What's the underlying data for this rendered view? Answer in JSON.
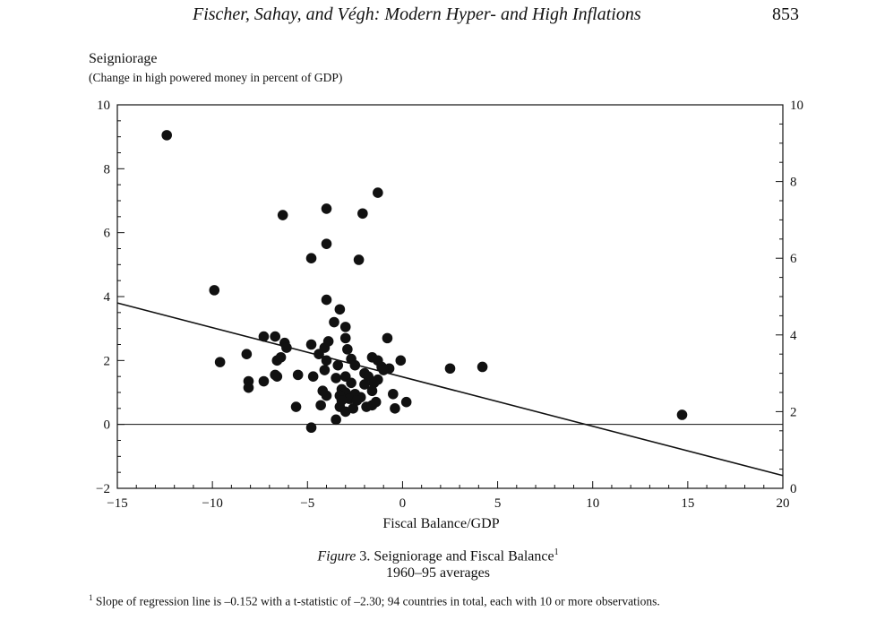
{
  "header": {
    "running_title": "Fischer, Sahay, and Végh: Modern Hyper- and High Inflations",
    "page_number": "853"
  },
  "chart_data": {
    "type": "scatter",
    "ylabel": "Seigniorage",
    "ylabel_sub": "(Change in high powered money in percent of GDP)",
    "xlabel": "Fiscal Balance/GDP",
    "xlim": [
      -15,
      20
    ],
    "ylim": [
      -2,
      10
    ],
    "x_ticks": [
      "−15",
      "−10",
      "−5",
      "0",
      "5",
      "10",
      "15",
      "20"
    ],
    "x_tick_values": [
      -15,
      -10,
      -5,
      0,
      5,
      10,
      15,
      20
    ],
    "y_ticks_left": [
      "−2",
      "0",
      "2",
      "4",
      "6",
      "8",
      "10"
    ],
    "y_tick_values_left": [
      -2,
      0,
      2,
      4,
      6,
      8,
      10
    ],
    "y_ticks_right": [
      "0",
      "2",
      "4",
      "6",
      "8",
      "10"
    ],
    "y_tick_values_right": [
      0,
      2,
      4,
      6,
      8,
      10
    ],
    "grid": false,
    "regression_line": {
      "x": [
        -15,
        20
      ],
      "y": [
        3.8,
        -1.6
      ]
    },
    "zero_line": true,
    "points": [
      [
        -12.4,
        9.05
      ],
      [
        -1.3,
        7.25
      ],
      [
        -6.3,
        6.55
      ],
      [
        -4.0,
        6.75
      ],
      [
        -2.1,
        6.6
      ],
      [
        -4.0,
        5.65
      ],
      [
        -4.8,
        5.2
      ],
      [
        -2.3,
        5.15
      ],
      [
        -9.9,
        4.2
      ],
      [
        -4.0,
        3.9
      ],
      [
        -3.3,
        3.6
      ],
      [
        -3.6,
        3.2
      ],
      [
        -3.0,
        3.05
      ],
      [
        -3.0,
        2.7
      ],
      [
        -0.8,
        2.7
      ],
      [
        -7.3,
        2.75
      ],
      [
        -6.7,
        2.75
      ],
      [
        -6.2,
        2.55
      ],
      [
        -6.1,
        2.4
      ],
      [
        -4.8,
        2.5
      ],
      [
        -4.1,
        2.4
      ],
      [
        -3.9,
        2.6
      ],
      [
        -4.4,
        2.2
      ],
      [
        -2.9,
        2.35
      ],
      [
        -8.2,
        2.2
      ],
      [
        -9.6,
        1.95
      ],
      [
        -6.6,
        2.0
      ],
      [
        -6.4,
        2.1
      ],
      [
        -4.0,
        2.0
      ],
      [
        -3.4,
        1.85
      ],
      [
        -2.7,
        2.05
      ],
      [
        -2.5,
        1.85
      ],
      [
        -1.6,
        2.1
      ],
      [
        -1.3,
        2.0
      ],
      [
        -0.1,
        2.0
      ],
      [
        -0.7,
        1.75
      ],
      [
        -1.1,
        1.8
      ],
      [
        -2.0,
        1.6
      ],
      [
        -4.1,
        1.7
      ],
      [
        -4.7,
        1.5
      ],
      [
        -5.5,
        1.55
      ],
      [
        -6.6,
        1.5
      ],
      [
        -6.7,
        1.55
      ],
      [
        -7.3,
        1.35
      ],
      [
        -8.1,
        1.35
      ],
      [
        -8.1,
        1.15
      ],
      [
        -3.0,
        1.5
      ],
      [
        -3.5,
        1.45
      ],
      [
        -1.8,
        1.5
      ],
      [
        -1.3,
        1.4
      ],
      [
        -1.5,
        1.3
      ],
      [
        -2.0,
        1.25
      ],
      [
        -2.7,
        1.3
      ],
      [
        -3.2,
        1.1
      ],
      [
        -3.0,
        1.0
      ],
      [
        -2.5,
        0.95
      ],
      [
        -3.3,
        0.9
      ],
      [
        -2.8,
        0.8
      ],
      [
        -2.2,
        0.85
      ],
      [
        -1.6,
        1.05
      ],
      [
        -0.5,
        0.95
      ],
      [
        -4.0,
        0.9
      ],
      [
        -4.2,
        1.05
      ],
      [
        -4.3,
        0.6
      ],
      [
        -5.6,
        0.55
      ],
      [
        -3.3,
        0.55
      ],
      [
        -3.0,
        0.4
      ],
      [
        -2.6,
        0.5
      ],
      [
        -1.9,
        0.55
      ],
      [
        -1.6,
        0.6
      ],
      [
        -1.4,
        0.7
      ],
      [
        -0.4,
        0.5
      ],
      [
        0.2,
        0.7
      ],
      [
        -3.5,
        0.15
      ],
      [
        -4.8,
        -0.1
      ],
      [
        -3.2,
        0.75
      ],
      [
        -2.4,
        0.75
      ],
      [
        -1.0,
        1.7
      ],
      [
        2.5,
        1.75
      ],
      [
        4.2,
        1.8
      ],
      [
        14.7,
        0.3
      ]
    ]
  },
  "caption": {
    "figure_label": "Figure",
    "figure_rest": " 3. Seigniorage and Fiscal Balance",
    "figure_sup": "1",
    "line2": "1960–95 averages"
  },
  "footnote": {
    "marker": "1",
    "text": " Slope of regression line is –0.152 with a t-statistic of –2.30; 94 countries in total, each with 10 or more observations."
  }
}
